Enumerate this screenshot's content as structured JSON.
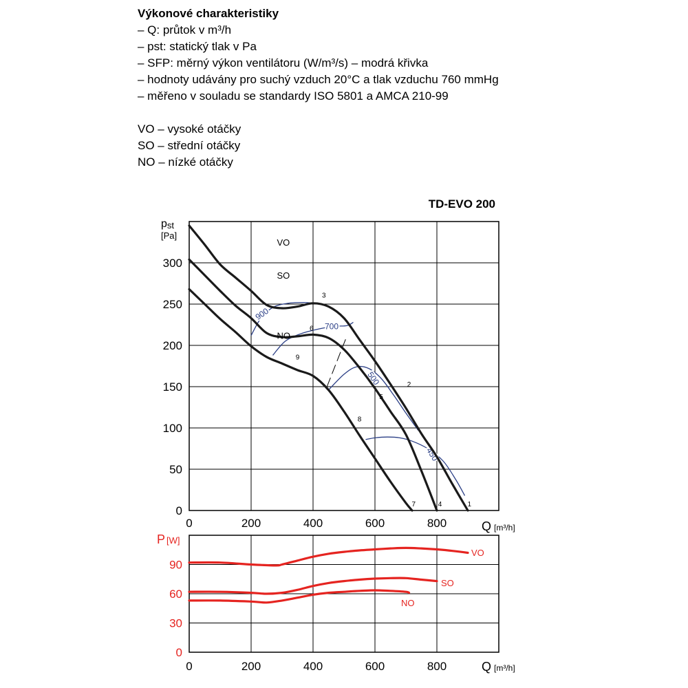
{
  "description": {
    "title": "Výkonové charakteristiky",
    "lines": [
      "– Q: průtok v m³/h",
      "– pst: statický tlak v Pa",
      "– SFP: měrný výkon ventilátoru (W/m³/s) – modrá křivka",
      "– hodnoty udávány pro suchý vzduch 20°C a tlak vzduchu 760 mmHg",
      "– měřeno v souladu se standardy ISO 5801 a AMCA 210-99"
    ],
    "speeds": [
      "VO – vysoké otáčky",
      "SO – střední otáčky",
      "NO – nízké otáčky"
    ]
  },
  "chart_data": [
    {
      "type": "line",
      "title": "TD-EVO 200",
      "ylabel": "pst",
      "yunit": "[Pa]",
      "xlabel": "Q",
      "xunit": "[m³/h]",
      "xlim": [
        0,
        1000
      ],
      "ylim": [
        0,
        350
      ],
      "xticks": [
        0,
        200,
        400,
        600,
        800
      ],
      "yticks": [
        0,
        50,
        100,
        150,
        200,
        250,
        300
      ],
      "grid": true,
      "series": [
        {
          "name": "VO",
          "color": "#1a1a1a",
          "x": [
            0,
            50,
            100,
            150,
            200,
            250,
            300,
            350,
            400,
            450,
            500,
            550,
            600,
            650,
            700,
            750,
            800,
            850,
            900
          ],
          "y": [
            345,
            322,
            298,
            282,
            266,
            249,
            245,
            247,
            251,
            247,
            233,
            207,
            181,
            153,
            124,
            93,
            65,
            32,
            0
          ]
        },
        {
          "name": "SO",
          "color": "#1a1a1a",
          "x": [
            0,
            50,
            100,
            150,
            200,
            250,
            300,
            350,
            400,
            450,
            500,
            550,
            600,
            650,
            700,
            750,
            800
          ],
          "y": [
            304,
            285,
            266,
            248,
            233,
            215,
            210,
            211,
            213,
            209,
            195,
            173,
            148,
            120,
            92,
            48,
            0
          ]
        },
        {
          "name": "NO",
          "color": "#1a1a1a",
          "x": [
            0,
            50,
            100,
            150,
            200,
            250,
            300,
            350,
            400,
            450,
            500,
            550,
            600,
            650,
            700,
            720
          ],
          "y": [
            268,
            250,
            232,
            216,
            199,
            186,
            178,
            170,
            163,
            146,
            120,
            91,
            63,
            35,
            9,
            0
          ]
        }
      ],
      "sfp_curves": [
        {
          "label": "900",
          "color": "#2b3f86",
          "x": [
            200,
            230,
            270,
            320,
            370,
            400
          ],
          "y": [
            212,
            232,
            246,
            251,
            252,
            251
          ]
        },
        {
          "label": "700",
          "color": "#2b3f86",
          "x": [
            270,
            310,
            360,
            420,
            470,
            510,
            530
          ],
          "y": [
            188,
            205,
            214,
            220,
            223,
            224,
            228
          ]
        },
        {
          "label": "500",
          "color": "#2b3f86",
          "x": [
            450,
            500,
            540,
            580,
            620,
            660,
            700,
            740
          ],
          "y": [
            146,
            165,
            174,
            172,
            160,
            140,
            118,
            97
          ]
        },
        {
          "label": "450",
          "color": "#2b3f86",
          "x": [
            570,
            600,
            640,
            680,
            720,
            770,
            820,
            860,
            890
          ],
          "y": [
            86,
            88,
            89,
            88,
            84,
            75,
            60,
            38,
            18
          ]
        }
      ],
      "point_labels": [
        {
          "label": "1",
          "x": 905,
          "y": 5
        },
        {
          "label": "2",
          "x": 710,
          "y": 150
        },
        {
          "label": "3",
          "x": 435,
          "y": 258
        },
        {
          "label": "4",
          "x": 810,
          "y": 5
        },
        {
          "label": "5",
          "x": 620,
          "y": 135
        },
        {
          "label": "6",
          "x": 395,
          "y": 218
        },
        {
          "label": "7",
          "x": 725,
          "y": 5
        },
        {
          "label": "8",
          "x": 550,
          "y": 108
        },
        {
          "label": "9",
          "x": 350,
          "y": 183
        }
      ]
    },
    {
      "type": "line",
      "ylabel": "P",
      "yunit": "[W]",
      "xlabel": "Q",
      "xunit": "[m³/h]",
      "xlim": [
        0,
        1000
      ],
      "ylim": [
        0,
        120
      ],
      "xticks": [
        0,
        200,
        400,
        600,
        800
      ],
      "yticks": [
        0,
        30,
        60,
        90
      ],
      "grid": true,
      "series": [
        {
          "name": "VO",
          "color": "#e52420",
          "x": [
            0,
            100,
            200,
            280,
            300,
            350,
            400,
            450,
            500,
            550,
            600,
            650,
            700,
            750,
            800,
            850,
            900
          ],
          "y": [
            92,
            92,
            90,
            89,
            90,
            94,
            98,
            101,
            103,
            104.5,
            105.5,
            106.5,
            107,
            106.5,
            105.5,
            104,
            102
          ]
        },
        {
          "name": "SO",
          "color": "#e52420",
          "x": [
            0,
            100,
            200,
            250,
            300,
            350,
            400,
            450,
            500,
            550,
            600,
            650,
            700,
            750,
            800
          ],
          "y": [
            62,
            62,
            61,
            60,
            61,
            64,
            68,
            71,
            73,
            74.5,
            75.5,
            76,
            76,
            74.5,
            73
          ]
        },
        {
          "name": "NO",
          "color": "#e52420",
          "x": [
            0,
            100,
            200,
            250,
            300,
            350,
            400,
            450,
            500,
            550,
            600,
            650,
            700,
            710
          ],
          "y": [
            53,
            53,
            52,
            51,
            53,
            56,
            59,
            61,
            62,
            63,
            63.5,
            63,
            62,
            61
          ]
        }
      ]
    }
  ]
}
